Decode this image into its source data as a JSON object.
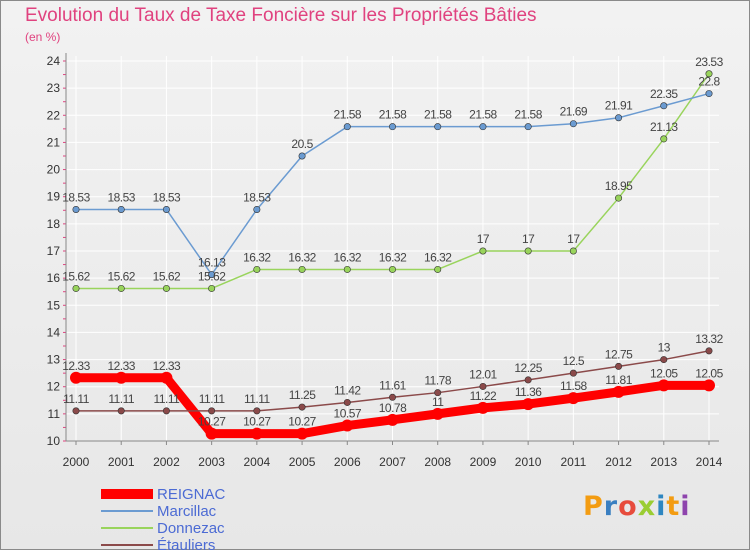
{
  "chart_data": {
    "type": "line",
    "title": "Evolution du Taux de Taxe Foncière sur les Propriétés Bâties",
    "subtitle": "(en %)",
    "xlabel": "",
    "ylabel": "(en %)",
    "categories": [
      "2000",
      "2001",
      "2002",
      "2003",
      "2004",
      "2005",
      "2006",
      "2007",
      "2008",
      "2009",
      "2010",
      "2011",
      "2012",
      "2013",
      "2014"
    ],
    "ylim": [
      10,
      24
    ],
    "yticks": [
      10,
      11,
      12,
      13,
      14,
      15,
      16,
      17,
      18,
      19,
      20,
      21,
      22,
      23,
      24
    ],
    "series": [
      {
        "name": "REIGNAC",
        "color": "#ff0000",
        "values": [
          12.33,
          12.33,
          12.33,
          10.27,
          10.27,
          10.27,
          10.57,
          10.78,
          11,
          11.22,
          11.36,
          11.58,
          11.81,
          12.05,
          12.05
        ],
        "labels": [
          "12.33",
          "12.33",
          "12.33",
          "10.27",
          "10.27",
          "10.27",
          "10.57",
          "10.78",
          "11",
          "11.22",
          "11.36",
          "11.58",
          "11.81",
          "12.05",
          "12.05"
        ]
      },
      {
        "name": "Marcillac",
        "color": "#6b9bd1",
        "values": [
          18.53,
          18.53,
          18.53,
          16.13,
          18.53,
          20.5,
          21.58,
          21.58,
          21.58,
          21.58,
          21.58,
          21.69,
          21.91,
          22.35,
          22.8
        ],
        "labels": [
          "18.53",
          "18.53",
          "18.53",
          "16.13",
          "18.53",
          "20.5",
          "21.58",
          "21.58",
          "21.58",
          "21.58",
          "21.58",
          "21.69",
          "21.91",
          "22.35",
          "22.8"
        ]
      },
      {
        "name": "Donnezac",
        "color": "#99d45c",
        "values": [
          15.62,
          15.62,
          15.62,
          15.62,
          16.32,
          16.32,
          16.32,
          16.32,
          16.32,
          17,
          17,
          17,
          18.95,
          21.13,
          23.53
        ],
        "labels": [
          "15.62",
          "15.62",
          "15.62",
          "15.62",
          "16.32",
          "16.32",
          "16.32",
          "16.32",
          "16.32",
          "17",
          "17",
          "17",
          "18.95",
          "21.13",
          "23.53"
        ]
      },
      {
        "name": "Étauliers",
        "color": "#8b4a4a",
        "values": [
          11.11,
          11.11,
          11.11,
          11.11,
          11.11,
          11.25,
          11.42,
          11.61,
          11.78,
          12.01,
          12.25,
          12.5,
          12.75,
          13,
          13.32
        ],
        "labels": [
          "11.11",
          "11.11",
          "11.11",
          "11.11",
          "11.11",
          "11.25",
          "11.42",
          "11.61",
          "11.78",
          "12.01",
          "12.25",
          "12.5",
          "12.75",
          "13",
          "13.32"
        ]
      }
    ],
    "legend_position": "bottom-left"
  },
  "logo": {
    "text": "Proxiti",
    "colors": [
      "#f39c12",
      "#3a7fc1",
      "#e74c3c",
      "#9acd32",
      "#2e86c1",
      "#f39c12",
      "#8e44ad"
    ]
  }
}
